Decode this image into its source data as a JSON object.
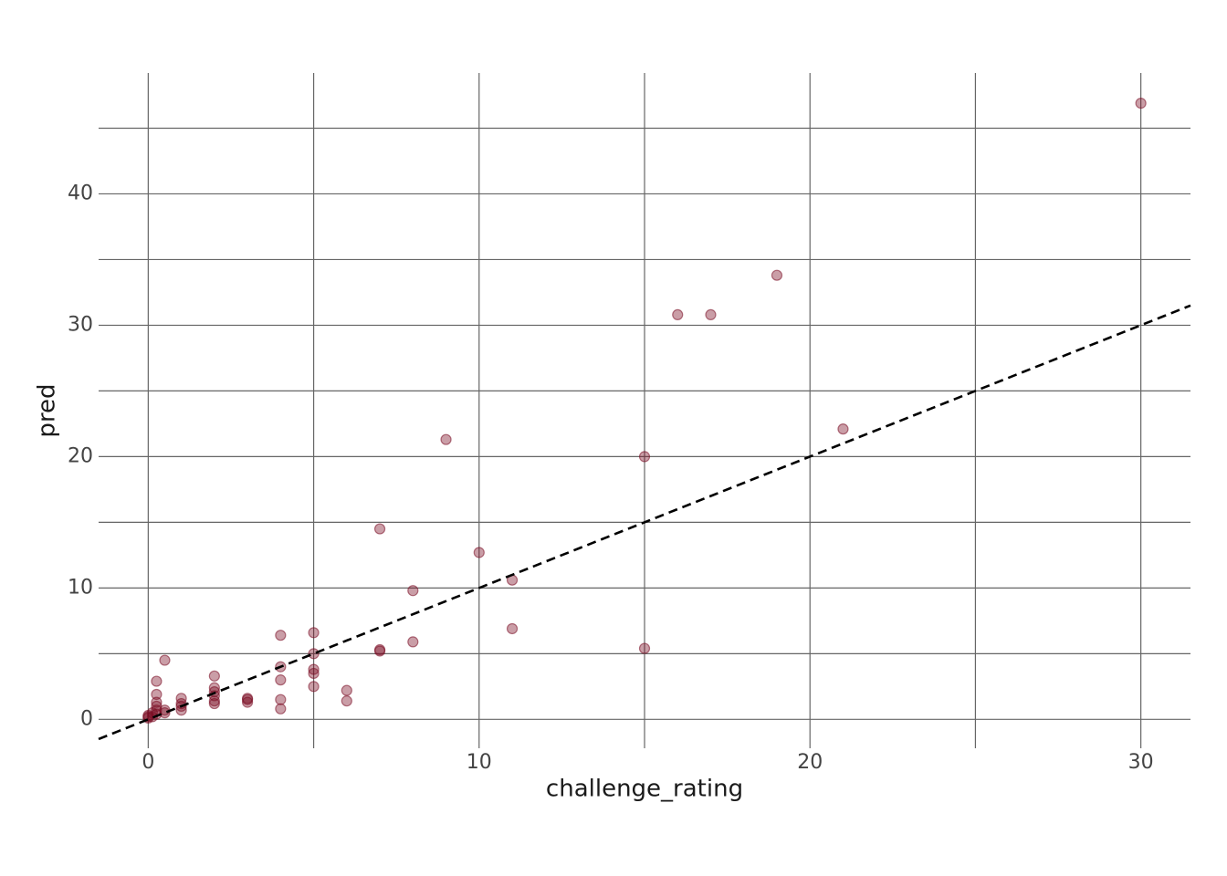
{
  "chart_data": {
    "type": "scatter",
    "xlabel": "challenge_rating",
    "ylabel": "pred",
    "x": [
      0,
      0,
      0,
      0.125,
      0.125,
      0.25,
      0.25,
      0.25,
      0.25,
      0.25,
      0.25,
      0.5,
      0.5,
      0.5,
      1,
      1,
      1,
      1,
      2,
      2,
      2,
      2,
      2,
      2,
      3,
      3,
      3,
      4,
      4,
      4,
      4,
      4,
      5,
      5,
      5,
      5,
      5,
      6,
      6,
      7,
      7,
      7,
      8,
      8,
      9,
      10,
      11,
      11,
      15,
      15,
      16,
      17,
      19,
      21,
      30
    ],
    "y": [
      0.1,
      0.2,
      0.3,
      0.2,
      0.5,
      0.4,
      0.7,
      1.0,
      1.3,
      1.9,
      2.9,
      0.5,
      0.7,
      4.5,
      0.7,
      1.0,
      1.2,
      1.6,
      1.2,
      1.4,
      1.8,
      2.1,
      2.4,
      3.3,
      1.3,
      1.5,
      1.6,
      0.8,
      1.5,
      3.0,
      4.0,
      6.4,
      2.5,
      3.5,
      3.8,
      5.0,
      6.6,
      1.4,
      2.2,
      5.2,
      5.3,
      14.5,
      5.9,
      9.8,
      21.3,
      12.7,
      6.9,
      10.6,
      5.4,
      20.0,
      30.8,
      30.8,
      33.8,
      22.1,
      46.9
    ],
    "color": "#7a0c24",
    "xlim": [
      -1.5,
      31.5
    ],
    "ylim": [
      -2.2,
      49.2
    ],
    "xticks": [
      0,
      10,
      20,
      30
    ],
    "yticks": [
      0,
      10,
      20,
      30,
      40
    ],
    "xminor": [
      5,
      15,
      25
    ],
    "yminor": [
      5,
      15,
      25,
      35,
      45
    ],
    "grid": true,
    "reference_line": {
      "slope": 1,
      "intercept": 0,
      "dashed": true,
      "color": "#000000"
    }
  }
}
